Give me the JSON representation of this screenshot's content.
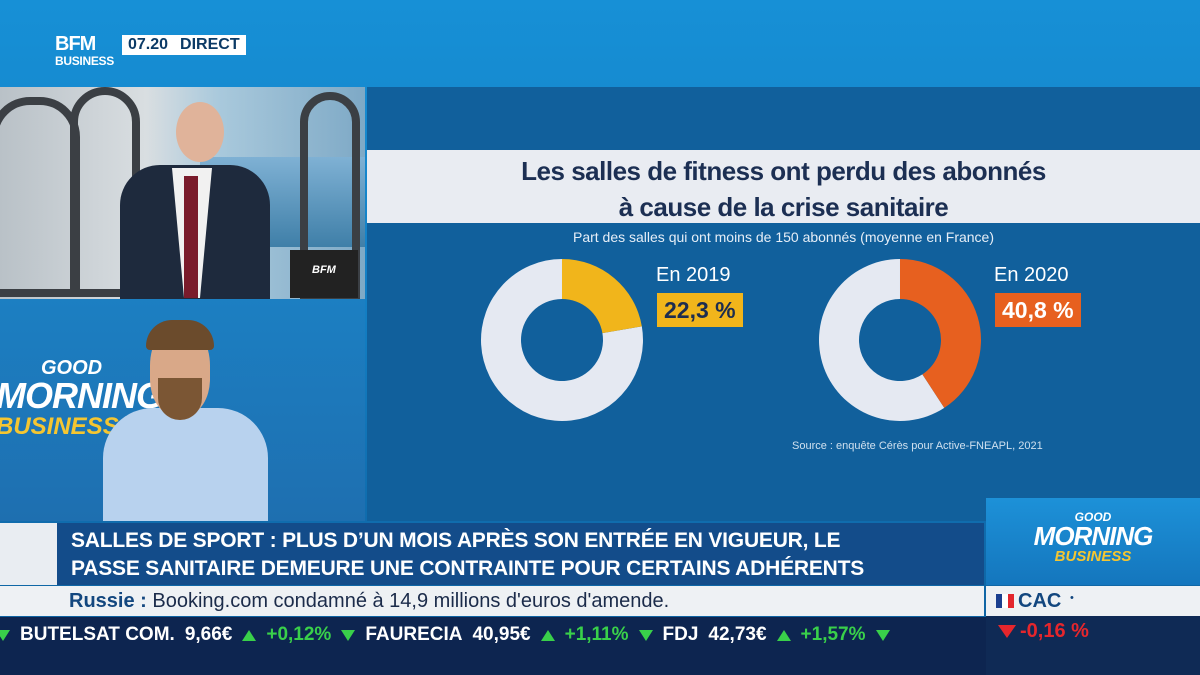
{
  "header": {
    "logo_top": "BFM",
    "logo_bottom": "BUSINESS",
    "time": "07.20",
    "live": "DIRECT"
  },
  "studio": {
    "mic_brand": "BFM",
    "show_top": "GOOD",
    "show_mid": "MORNING",
    "show_bot": "BUSINESS"
  },
  "chart_data": {
    "type": "pie",
    "title": "Les salles de fitness ont perdu des abonnés à cause de la crise sanitaire",
    "title_line1": "Les salles de fitness ont perdu des abonnés",
    "title_line2": "à cause de la crise sanitaire",
    "subtitle": "Part des salles qui ont moins de 150 abonnés (moyenne en France)",
    "source": "Source : enquête Cérès pour Active-FNEAPL, 2021",
    "series": [
      {
        "name": "En 2019",
        "value": 22.3,
        "label": "22,3 %",
        "color": "#f1b51b"
      },
      {
        "name": "En 2020",
        "value": 40.8,
        "label": "40,8 %",
        "color": "#e7601f"
      }
    ],
    "remainder_color": "#e5e9f2"
  },
  "headline": {
    "line1": "SALLES DE SPORT : PLUS D’UN MOIS APRÈS SON ENTRÉE EN VIGUEUR, LE",
    "line2": "PASSE SANITAIRE DEMEURE UNE CONTRAINTE POUR CERTAINS ADHÉRENTS"
  },
  "flash": {
    "keyword": "Russie :",
    "text": "Booking.com condamné à 14,9 millions d'euros d'amende."
  },
  "brand_box": {
    "a": "GOOD",
    "b": "MORNING",
    "c": "BUSINESS"
  },
  "index": {
    "name": "CAC",
    "dot": "•",
    "change": "-0,16 %"
  },
  "ticker": [
    {
      "name": "BUTELSAT COM.",
      "price": "9,66€",
      "pct": "+0,12%"
    },
    {
      "name": "FAURECIA",
      "price": "40,95€",
      "pct": "+1,11%"
    },
    {
      "name": "FDJ",
      "price": "42,73€",
      "pct": "+1,57%"
    }
  ]
}
